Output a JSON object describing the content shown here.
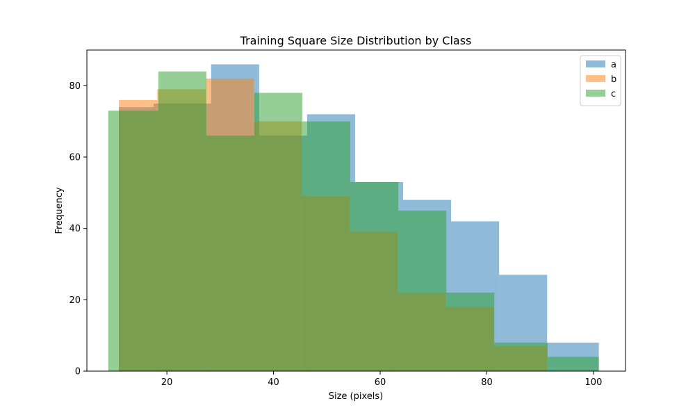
{
  "chart_data": {
    "type": "bar",
    "title": "Training Square Size Distribution by Class",
    "xlabel": "Size (pixels)",
    "ylabel": "Frequency",
    "xlim": [
      5,
      106
    ],
    "ylim": [
      0,
      90
    ],
    "xticks": [
      20,
      40,
      60,
      80,
      100
    ],
    "yticks": [
      0,
      20,
      40,
      60,
      80
    ],
    "grid": false,
    "legend_position": "top-right",
    "bar_alpha": 0.5,
    "series": [
      {
        "name": "a",
        "color": "#1f77b4",
        "bin_edges": [
          11,
          17.5,
          28.3,
          37.3,
          46.3,
          55.3,
          64.3,
          73.3,
          82.3,
          91.3,
          101
        ],
        "values": [
          74,
          75,
          86,
          66,
          72,
          53,
          48,
          42,
          27,
          8
        ]
      },
      {
        "name": "b",
        "color": "#ff7f0e",
        "bin_edges": [
          11,
          18.2,
          27.3,
          36.3,
          45.3,
          54.3,
          63.3,
          72.3,
          81.3,
          91.3,
          101
        ],
        "values": [
          76,
          79,
          82,
          70,
          49,
          39,
          22,
          18,
          7,
          0
        ]
      },
      {
        "name": "c",
        "color": "#2ca02c",
        "bin_edges": [
          9,
          18.4,
          27.4,
          36.4,
          45.4,
          54.4,
          63.4,
          72.4,
          81.4,
          91.4,
          101
        ],
        "values": [
          73,
          84,
          66,
          78,
          70,
          53,
          45,
          22,
          8,
          4
        ]
      }
    ]
  }
}
